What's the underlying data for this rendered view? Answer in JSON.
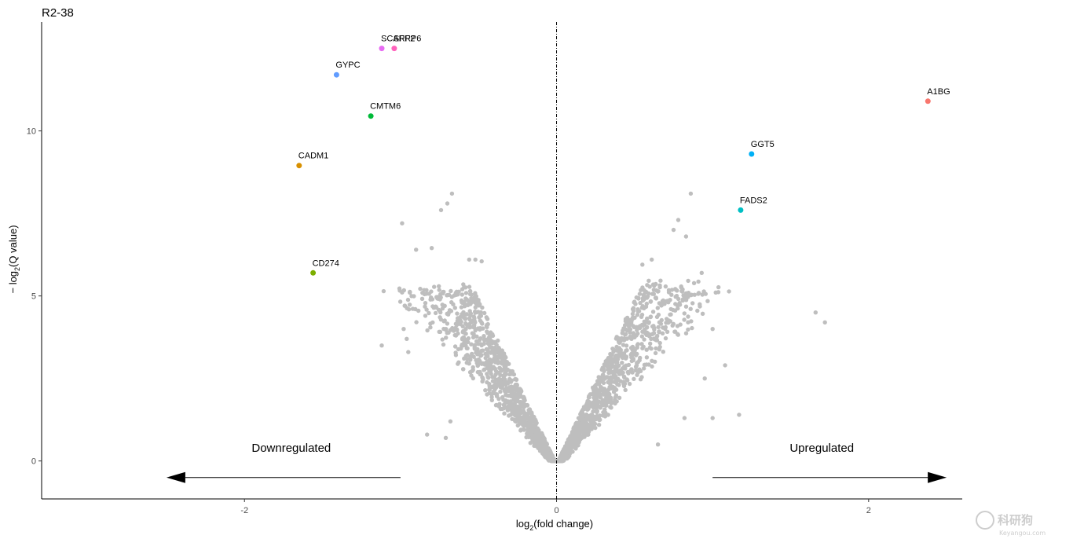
{
  "chart_data": {
    "type": "scatter",
    "title": "R2-38",
    "xlabel_main": "log",
    "xlabel_sub": "2",
    "xlabel_rest": "(fold change)",
    "ylabel_main": "− log",
    "ylabel_sub": "2",
    "ylabel_rest": "(Q value)",
    "xlim": [
      -3.3,
      2.6
    ],
    "ylim": [
      -1.15,
      13.3
    ],
    "x_ticks": [
      -2,
      0,
      2
    ],
    "x_tick_labels": [
      "-2",
      "0",
      "2"
    ],
    "y_ticks": [
      0,
      5,
      10
    ],
    "y_tick_labels": [
      "0",
      "5",
      "10"
    ],
    "vline_x": 0,
    "background_color": "#bebebe",
    "labeled_points": [
      {
        "gene": "SCARF2",
        "x": -1.12,
        "y": 12.5,
        "color": "#e76bf3"
      },
      {
        "gene": "SFRP6",
        "x": -1.04,
        "y": 12.5,
        "color": "#ff62bc"
      },
      {
        "gene": "GYPC",
        "x": -1.41,
        "y": 11.7,
        "color": "#619cff"
      },
      {
        "gene": "CMTM6",
        "x": -1.19,
        "y": 10.45,
        "color": "#00ba38"
      },
      {
        "gene": "CADM1",
        "x": -1.65,
        "y": 8.95,
        "color": "#d89000"
      },
      {
        "gene": "CD274",
        "x": -1.56,
        "y": 5.7,
        "color": "#7cae00"
      },
      {
        "gene": "A1BG",
        "x": 2.38,
        "y": 10.9,
        "color": "#f8766d"
      },
      {
        "gene": "GGT5",
        "x": 1.25,
        "y": 9.3,
        "color": "#00b0f6"
      },
      {
        "gene": "FADS2",
        "x": 1.18,
        "y": 7.6,
        "color": "#00bfc4"
      }
    ],
    "outlier_points": [
      [
        -0.67,
        8.1
      ],
      [
        -0.7,
        7.8
      ],
      [
        -0.74,
        7.6
      ],
      [
        -0.99,
        7.2
      ],
      [
        -0.9,
        6.4
      ],
      [
        -0.8,
        6.45
      ],
      [
        -0.56,
        6.1
      ],
      [
        -0.52,
        6.1
      ],
      [
        -0.48,
        6.05
      ],
      [
        -1.12,
        3.5
      ],
      [
        -0.96,
        3.7
      ],
      [
        -0.98,
        4.0
      ],
      [
        -0.95,
        3.3
      ],
      [
        -0.83,
        0.8
      ],
      [
        -0.71,
        0.7
      ],
      [
        -0.68,
        1.2
      ],
      [
        0.86,
        8.1
      ],
      [
        0.78,
        7.3
      ],
      [
        0.75,
        7.0
      ],
      [
        0.83,
        6.8
      ],
      [
        0.61,
        6.1
      ],
      [
        0.55,
        5.95
      ],
      [
        0.93,
        5.7
      ],
      [
        1.66,
        4.5
      ],
      [
        1.72,
        4.2
      ],
      [
        1.0,
        4.0
      ],
      [
        1.08,
        2.9
      ],
      [
        0.95,
        2.5
      ],
      [
        1.17,
        1.4
      ],
      [
        1.0,
        1.3
      ],
      [
        0.82,
        1.3
      ],
      [
        0.65,
        0.5
      ]
    ],
    "annotations": [
      {
        "text": "Downregulated",
        "x": -1.7,
        "y": 0.4
      },
      {
        "text": "Upregulated",
        "x": 1.7,
        "y": 0.4
      }
    ],
    "arrows": [
      {
        "from_x": -1.0,
        "to_x": -2.5,
        "y": -0.5
      },
      {
        "from_x": 1.0,
        "to_x": 2.5,
        "y": -0.5
      }
    ]
  },
  "watermark": {
    "text": "科研狗",
    "sub": "Keyangou.com"
  }
}
